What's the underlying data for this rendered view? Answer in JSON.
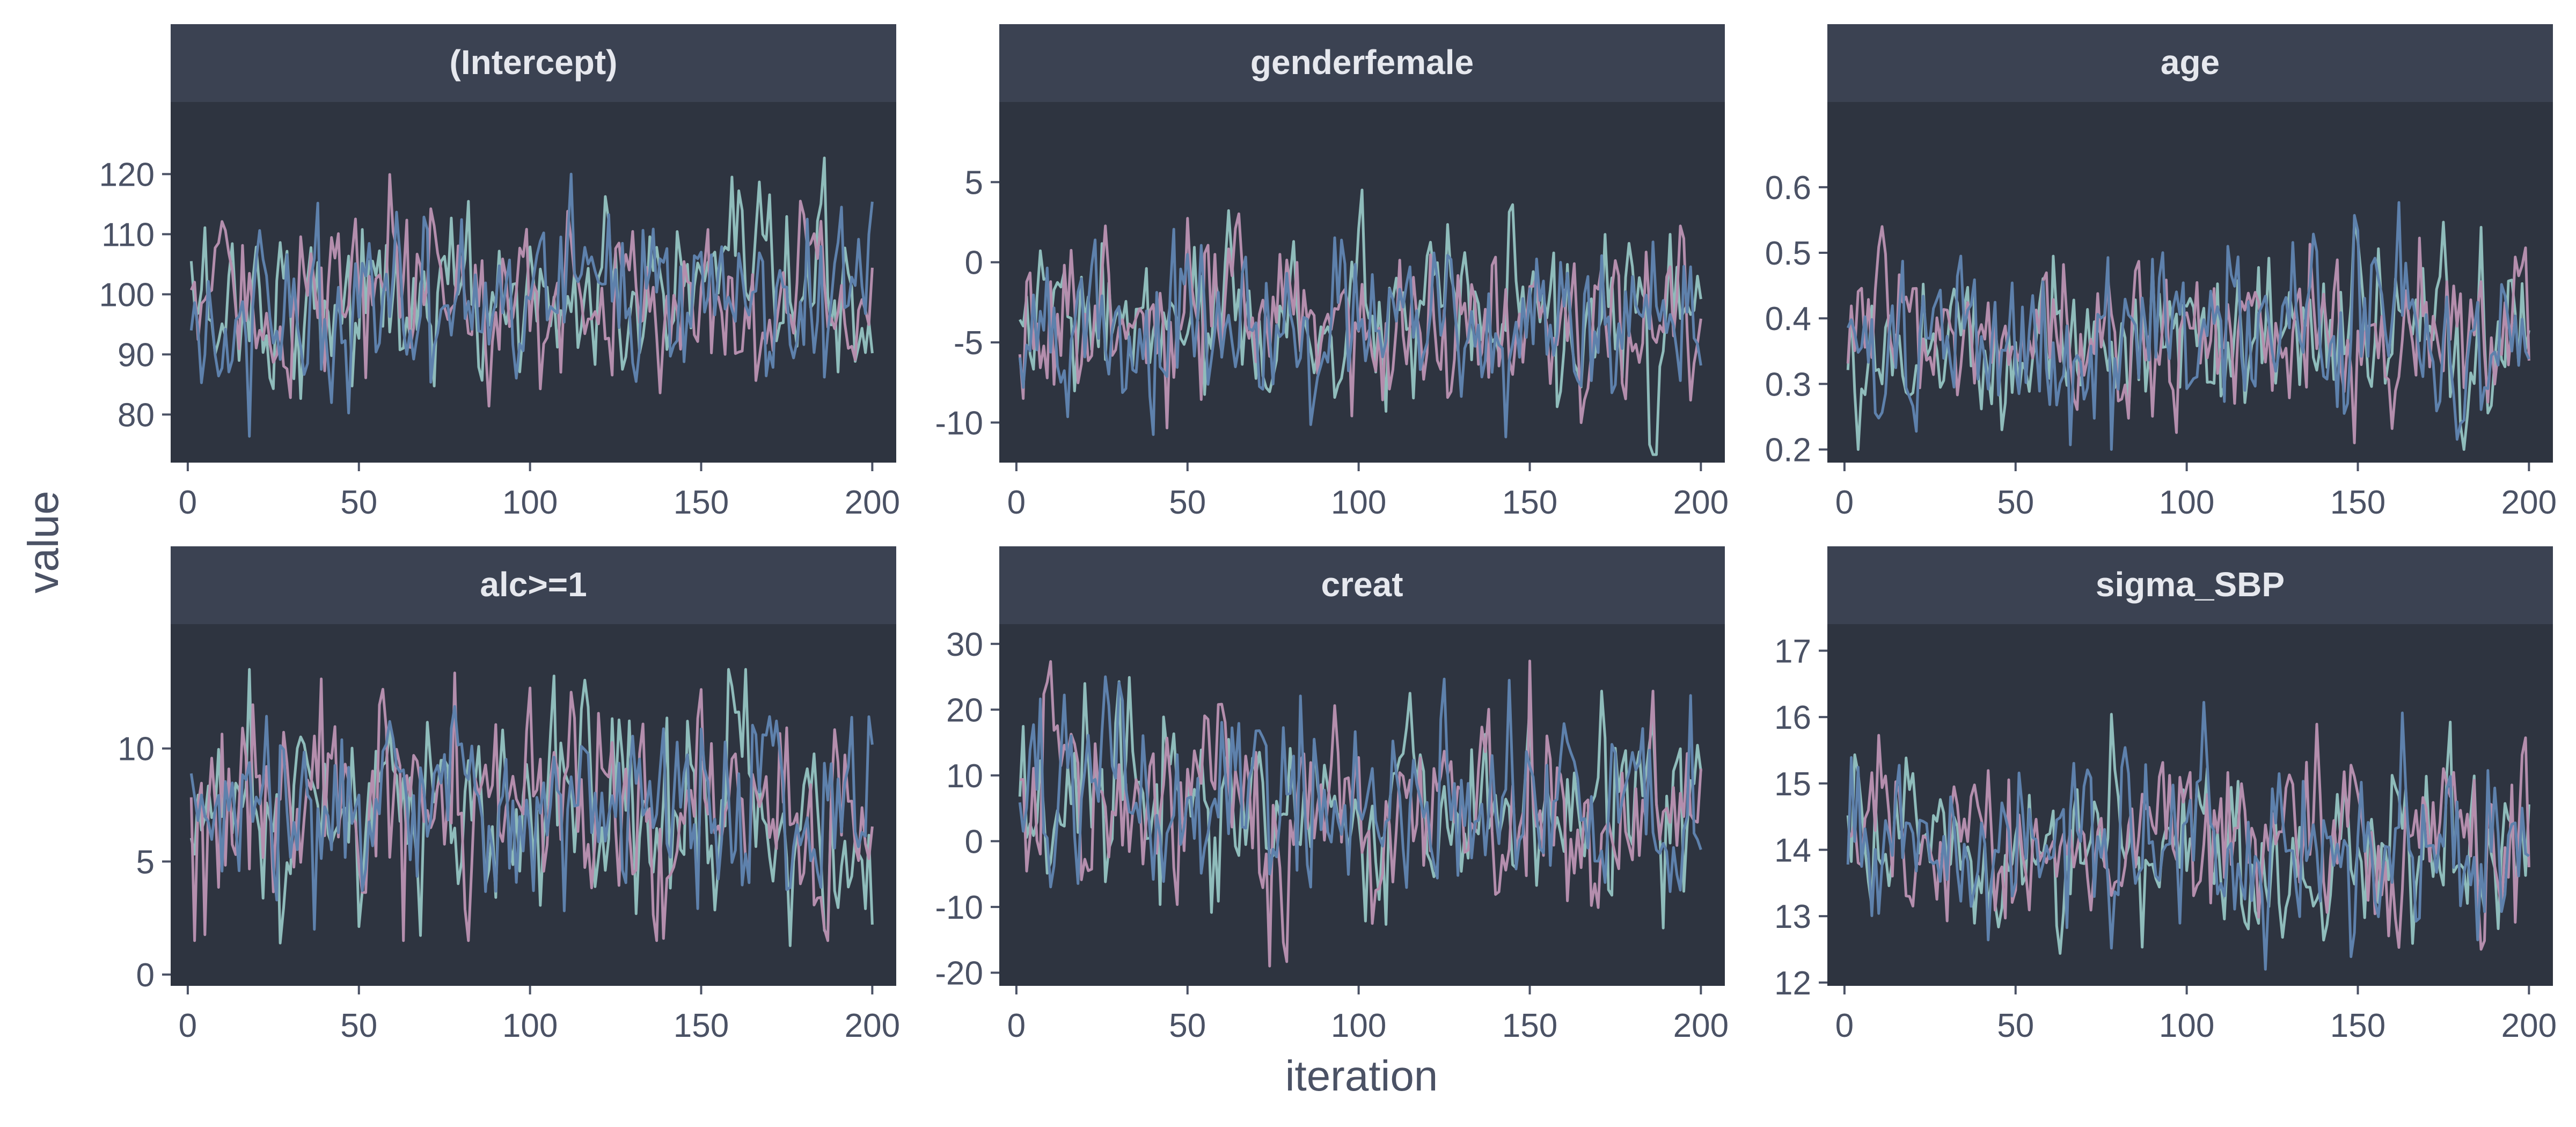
{
  "chart_data": {
    "type": "line",
    "xlabel": "iteration",
    "ylabel": "value",
    "iterations": 200,
    "colors": {
      "figure_background": "#ffffff",
      "panel_background": "#2e3440",
      "strip_background": "#3b4252",
      "strip_text": "#e6e8ee",
      "axis_text": "#4b5265",
      "chain_colors": [
        "#8fbcbb",
        "#b48ead",
        "#5e81ac"
      ]
    },
    "x_ticks": [
      0,
      50,
      100,
      150,
      200
    ],
    "xlim": [
      -5,
      207
    ],
    "panels": [
      {
        "title": "(Intercept)",
        "ylim": [
          72,
          132
        ],
        "y_ticks": [
          80,
          90,
          100,
          110,
          120
        ],
        "chains": [
          {
            "mean": 99,
            "sd": 7.2,
            "min": 75,
            "max": 123
          },
          {
            "mean": 99,
            "sd": 7.0,
            "min": 77,
            "max": 121
          },
          {
            "mean": 99,
            "sd": 7.3,
            "min": 74,
            "max": 120
          }
        ]
      },
      {
        "title": "genderfemale",
        "ylim": [
          -12.5,
          10
        ],
        "y_ticks": [
          -10,
          -5,
          0,
          5
        ],
        "chains": [
          {
            "mean": -4,
            "sd": 2.6,
            "min": -12,
            "max": 6
          },
          {
            "mean": -4,
            "sd": 2.5,
            "min": -11.5,
            "max": 3.5
          },
          {
            "mean": -4.2,
            "sd": 2.6,
            "min": -11.8,
            "max": 3.5
          }
        ]
      },
      {
        "title": "age",
        "ylim": [
          0.18,
          0.73
        ],
        "y_ticks": [
          0.2,
          0.3,
          0.4,
          0.5,
          0.6
        ],
        "chains": [
          {
            "mean": 0.37,
            "sd": 0.07,
            "min": 0.2,
            "max": 0.55
          },
          {
            "mean": 0.37,
            "sd": 0.065,
            "min": 0.21,
            "max": 0.54
          },
          {
            "mean": 0.37,
            "sd": 0.07,
            "min": 0.2,
            "max": 0.62
          }
        ]
      },
      {
        "title": "alc>=1",
        "ylim": [
          -0.5,
          15.5
        ],
        "y_ticks": [
          0,
          5,
          10
        ],
        "chains": [
          {
            "mean": 7.3,
            "sd": 2.4,
            "min": 0.2,
            "max": 13.5
          },
          {
            "mean": 7.2,
            "sd": 2.4,
            "min": 1.5,
            "max": 14
          },
          {
            "mean": 7.3,
            "sd": 2.3,
            "min": 2,
            "max": 13
          }
        ]
      },
      {
        "title": "creat",
        "ylim": [
          -22,
          33
        ],
        "y_ticks": [
          -20,
          -10,
          0,
          10,
          20,
          30
        ],
        "chains": [
          {
            "mean": 4.5,
            "sd": 7.5,
            "min": -18,
            "max": 26
          },
          {
            "mean": 4.5,
            "sd": 7.5,
            "min": -19,
            "max": 30
          },
          {
            "mean": 4.5,
            "sd": 7.3,
            "min": -20,
            "max": 25
          }
        ]
      },
      {
        "title": "sigma_SBP",
        "ylim": [
          11.95,
          17.4
        ],
        "y_ticks": [
          12,
          13,
          14,
          15,
          16,
          17
        ],
        "chains": [
          {
            "mean": 14.1,
            "sd": 0.7,
            "min": 12.1,
            "max": 17
          },
          {
            "mean": 14.1,
            "sd": 0.65,
            "min": 12.5,
            "max": 16
          },
          {
            "mean": 14.1,
            "sd": 0.7,
            "min": 12.2,
            "max": 16.5
          }
        ]
      }
    ]
  }
}
